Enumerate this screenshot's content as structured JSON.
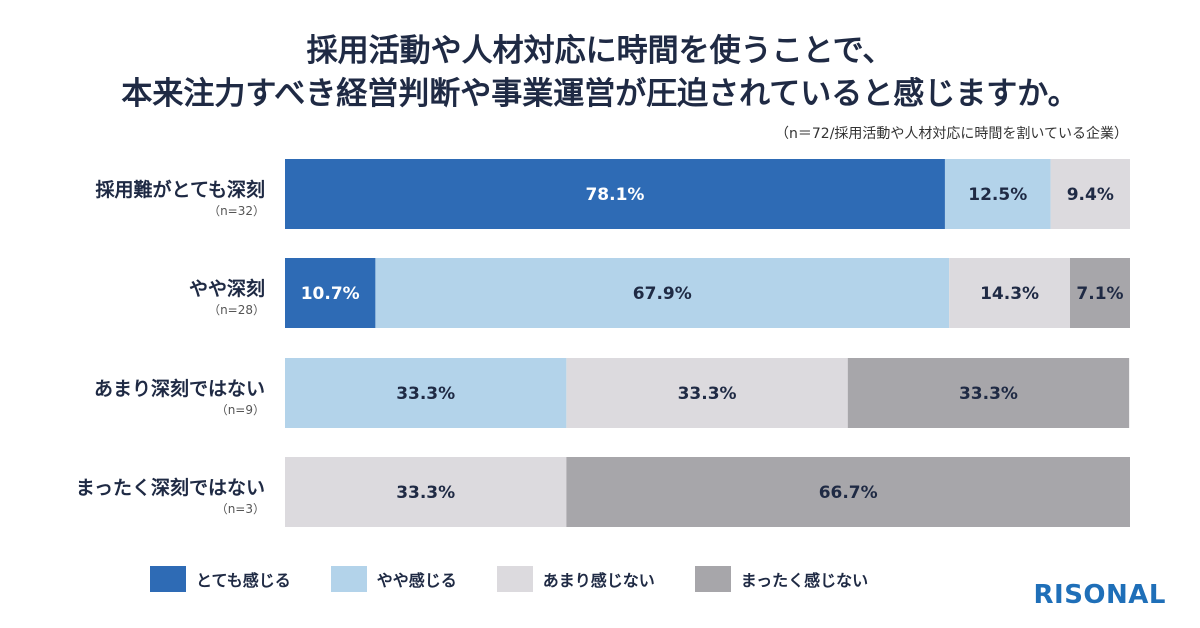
{
  "title_line1": "採用活動や人材対応に時間を使うことで、",
  "title_line2": "本来注力すべき経営判断や事業運営が圧迫されていると感じますか。",
  "note": "（n＝72/採用活動や人材対応に時間を割いている企業）",
  "logo": "RISONAL",
  "chart_data": {
    "type": "bar",
    "orientation": "horizontal-stacked-100",
    "categories": [
      {
        "label": "採用難がとても深刻",
        "n": "（n=32）"
      },
      {
        "label": "やや深刻",
        "n": "（n=28）"
      },
      {
        "label": "あまり深刻ではない",
        "n": "（n=9）"
      },
      {
        "label": "まったく深刻ではない",
        "n": "（n=3）"
      }
    ],
    "series": [
      {
        "name": "とても感じる",
        "color": "#2e6bb5",
        "text_color": "#ffffff",
        "values": [
          78.1,
          10.7,
          0,
          0
        ],
        "labels": [
          "78.1%",
          "10.7%",
          "",
          ""
        ]
      },
      {
        "name": "やや感じる",
        "color": "#b3d3ea",
        "text_color": "#1f2a44",
        "values": [
          12.5,
          67.9,
          33.3,
          0
        ],
        "labels": [
          "12.5%",
          "67.9%",
          "33.3%",
          ""
        ]
      },
      {
        "name": "あまり感じない",
        "color": "#dcdade",
        "text_color": "#1f2a44",
        "values": [
          9.4,
          14.3,
          33.3,
          33.3
        ],
        "labels": [
          "9.4%",
          "14.3%",
          "33.3%",
          "33.3%"
        ]
      },
      {
        "name": "まったく感じない",
        "color": "#a7a6aa",
        "text_color": "#1f2a44",
        "values": [
          0,
          7.1,
          33.3,
          66.7
        ],
        "labels": [
          "",
          "7.1%",
          "33.3%",
          "66.7%"
        ]
      }
    ],
    "xlim": [
      0,
      100
    ],
    "legend": "bottom"
  }
}
